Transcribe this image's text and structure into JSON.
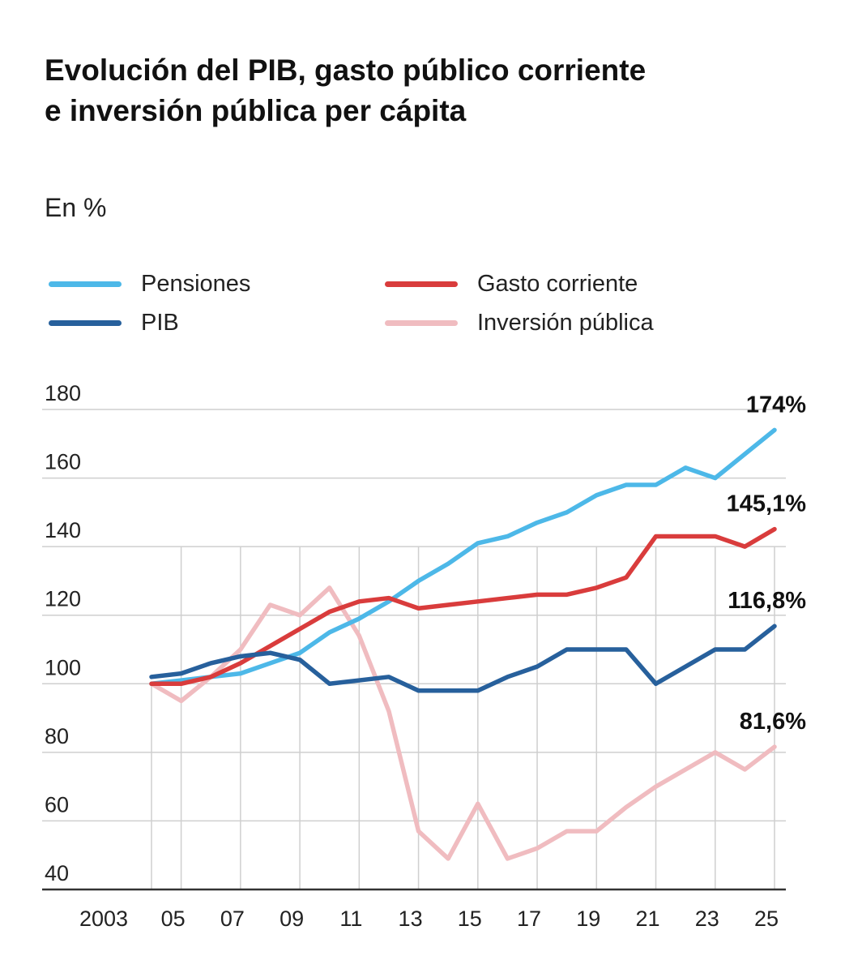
{
  "title": "Evolución del PIB, gasto público corriente e inversión pública per cápita",
  "unit_label": "En %",
  "legend": [
    {
      "label": "Pensiones",
      "color": "#4db8e8"
    },
    {
      "label": "Gasto corriente",
      "color": "#d93c3c"
    },
    {
      "label": "PIB",
      "color": "#27609c"
    },
    {
      "label": "Inversión pública",
      "color": "#f0bcc0"
    }
  ],
  "chart_data": {
    "type": "line",
    "title": "Evolución del PIB, gasto público corriente e inversión pública per cápita",
    "ylabel": "En %",
    "xlabel": "",
    "ylim": [
      40,
      180
    ],
    "y_ticks": [
      40,
      60,
      80,
      100,
      120,
      140,
      160,
      180
    ],
    "x_tick_labels": [
      "2003",
      "05",
      "07",
      "09",
      "11",
      "13",
      "15",
      "17",
      "19",
      "21",
      "23",
      "25"
    ],
    "x": [
      2004,
      2005,
      2006,
      2007,
      2008,
      2009,
      2010,
      2011,
      2012,
      2013,
      2014,
      2015,
      2016,
      2017,
      2018,
      2019,
      2020,
      2021,
      2022,
      2023,
      2024,
      2025
    ],
    "series": [
      {
        "name": "Pensiones",
        "color": "#4db8e8",
        "values": [
          100,
          101,
          102,
          103,
          106,
          109,
          115,
          119,
          124,
          130,
          135,
          141,
          143,
          147,
          150,
          155,
          158,
          158,
          163,
          160,
          167,
          174
        ],
        "end_label": "174%"
      },
      {
        "name": "Gasto corriente",
        "color": "#d93c3c",
        "values": [
          100,
          100,
          102,
          106,
          111,
          116,
          121,
          124,
          125,
          122,
          123,
          124,
          125,
          126,
          126,
          128,
          131,
          143,
          143,
          143,
          140,
          145.1
        ],
        "end_label": "145,1%"
      },
      {
        "name": "PIB",
        "color": "#27609c",
        "values": [
          102,
          103,
          106,
          108,
          109,
          107,
          100,
          101,
          102,
          98,
          98,
          98,
          102,
          105,
          110,
          110,
          110,
          100,
          105,
          110,
          110,
          116.8
        ],
        "end_label": "116,8%"
      },
      {
        "name": "Inversión pública",
        "color": "#f0bcc0",
        "values": [
          100,
          95,
          102,
          110,
          123,
          120,
          128,
          114,
          92,
          57,
          49,
          65,
          49,
          52,
          57,
          57,
          64,
          70,
          75,
          80,
          75,
          81.6
        ],
        "end_label": "81,6%"
      }
    ]
  }
}
